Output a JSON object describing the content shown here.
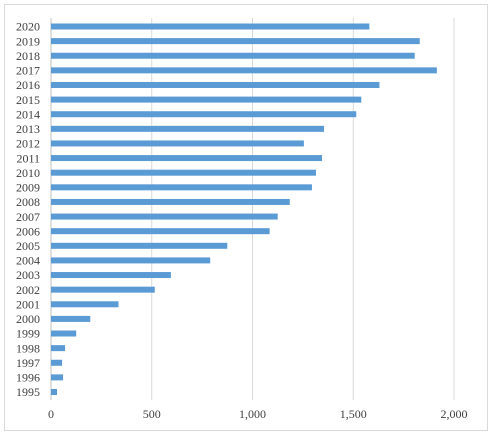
{
  "chart_data": {
    "type": "bar",
    "orientation": "horizontal",
    "title": "",
    "xlabel": "",
    "ylabel": "",
    "categories": [
      "2020",
      "2019",
      "2018",
      "2017",
      "2016",
      "2015",
      "2014",
      "2013",
      "2012",
      "2011",
      "2010",
      "2009",
      "2008",
      "2007",
      "2006",
      "2005",
      "2004",
      "2003",
      "2002",
      "2001",
      "2000",
      "1999",
      "1998",
      "1997",
      "1996",
      "1995"
    ],
    "values": [
      1580,
      1830,
      1805,
      1915,
      1630,
      1540,
      1515,
      1355,
      1255,
      1345,
      1315,
      1295,
      1185,
      1125,
      1085,
      875,
      790,
      595,
      515,
      335,
      195,
      125,
      70,
      55,
      60,
      30
    ],
    "xlim": [
      0,
      2000
    ],
    "xticks": [
      0,
      500,
      1000,
      1500,
      2000
    ],
    "xtick_labels": [
      "0",
      "500",
      "1,000",
      "1,500",
      "2,000"
    ],
    "grid": true,
    "bar_color": "#5b9bd5",
    "grid_color": "#d9d9d9",
    "legend": "none"
  }
}
